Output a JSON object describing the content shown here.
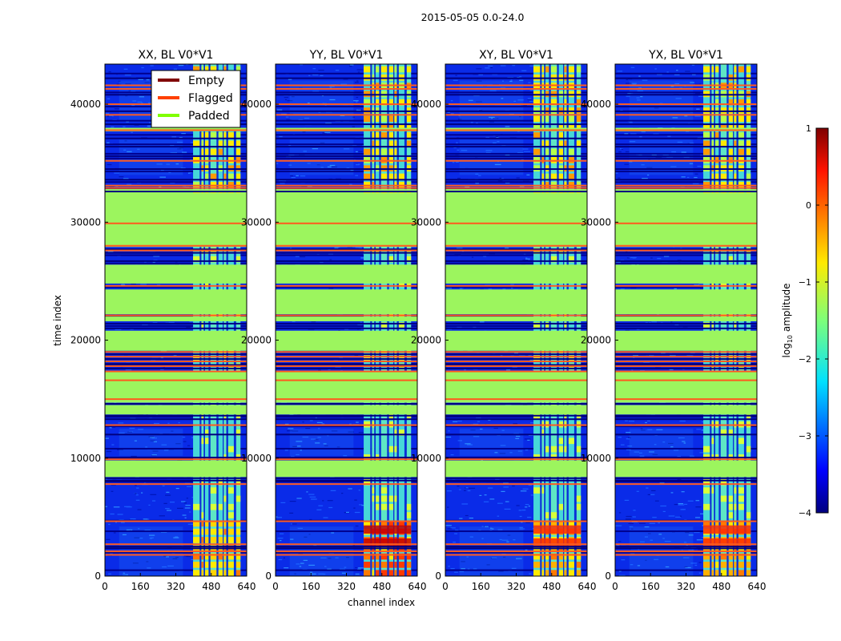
{
  "figure": {
    "suptitle": "2015-05-05 0.0-24.0"
  },
  "chart_data": {
    "type": "heatmap",
    "xlabel": "channel index",
    "ylabel": "time index",
    "xlim": [
      0,
      640
    ],
    "ylim": [
      0,
      43400
    ],
    "xticks": [
      "0",
      "160",
      "320",
      "480",
      "640"
    ],
    "yticks": [
      "0",
      "10000",
      "20000",
      "30000",
      "40000"
    ],
    "panels": [
      {
        "title": "XX, BL V0*V1",
        "burst": "low"
      },
      {
        "title": "YY, BL V0*V1",
        "burst": "high"
      },
      {
        "title": "XY, BL V0*V1",
        "burst": "med"
      },
      {
        "title": "YX, BL V0*V1",
        "burst": "med"
      }
    ],
    "legend": {
      "position": "top-right of first panel",
      "entries": [
        {
          "label": "Empty",
          "color": "#800000"
        },
        {
          "label": "Flagged",
          "color": "#ff4000"
        },
        {
          "label": "Padded",
          "color": "#80ff00"
        }
      ]
    },
    "colorbar": {
      "label": "log₁₀ amplitude",
      "label_main": "log",
      "label_sub": "10",
      "label_tail": " amplitude",
      "min": -4,
      "max": 1,
      "ticks": [
        "1",
        "0",
        "−1",
        "−2",
        "−3",
        "−4"
      ],
      "colormap": "jet"
    },
    "bands": {
      "padded": [
        [
          8400,
          9800
        ],
        [
          13700,
          14500
        ],
        [
          14700,
          17400
        ],
        [
          19100,
          20800
        ],
        [
          21600,
          22000
        ],
        [
          22200,
          24300
        ],
        [
          24800,
          26400
        ],
        [
          27900,
          32800
        ],
        [
          37700,
          38000
        ]
      ],
      "padded_bright_cols": [
        [
          8400,
          9800
        ],
        [
          15600,
          16600
        ],
        [
          19200,
          20600
        ],
        [
          23000,
          24100
        ],
        [
          28100,
          32700
        ]
      ],
      "flagged_lines": [
        1800,
        2100,
        2700,
        4650,
        7800,
        9900,
        12800,
        15000,
        16600,
        17350,
        17800,
        18200,
        18600,
        19000,
        22100,
        24600,
        27600,
        28000,
        29900,
        32900,
        33100,
        35200,
        37800,
        39100,
        40000,
        41300,
        41600
      ],
      "empty_lines": [
        2350,
        2500,
        8100,
        8300,
        10050,
        12000,
        13300,
        13600,
        14600,
        17600,
        17900,
        18400,
        18800,
        21000,
        21400,
        26700,
        27400,
        27700,
        32600,
        33600,
        34500,
        35600,
        36400,
        37100,
        38300,
        39400,
        40800,
        42200
      ],
      "blue_strips": [
        500,
        2000,
        3800,
        4700,
        8000,
        9950,
        10800,
        12700,
        13500,
        18000,
        21200,
        22000,
        24500,
        26500,
        27200,
        32850,
        33400,
        34300,
        35400,
        35800,
        36600,
        37400,
        38600,
        39800,
        41000,
        42600
      ]
    }
  }
}
